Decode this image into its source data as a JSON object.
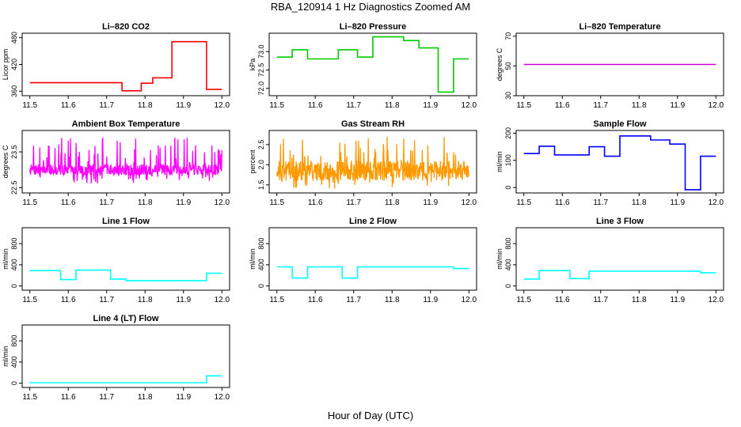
{
  "title": "RBA_120914  1 Hz Diagnostics Zoomed AM",
  "xlabel": "Hour of Day (UTC)",
  "chart_data": [
    {
      "type": "line",
      "title": "Li–820 CO2",
      "ylabel": "Licor ppm",
      "color": "#ff0000",
      "xlim": [
        11.48,
        12.02
      ],
      "ylim": [
        350,
        490
      ],
      "yticks": [
        360,
        420,
        480
      ],
      "xticks": [
        11.5,
        11.6,
        11.7,
        11.8,
        11.9,
        12.0
      ],
      "series": [
        {
          "x": [
            11.5,
            11.74,
            11.74,
            11.79,
            11.79,
            11.82,
            11.82,
            11.87,
            11.87,
            11.96,
            11.96,
            12.0
          ],
          "y": [
            379,
            379,
            361,
            361,
            378,
            378,
            390,
            390,
            471,
            471,
            364,
            364
          ]
        }
      ]
    },
    {
      "type": "line",
      "title": "Li–820 Pressure",
      "ylabel": "kPa",
      "color": "#00cc00",
      "xlim": [
        11.48,
        12.02
      ],
      "ylim": [
        71.8,
        73.5
      ],
      "yticks": [
        72.0,
        72.5,
        73.0
      ],
      "xticks": [
        11.5,
        11.6,
        11.7,
        11.8,
        11.9,
        12.0
      ],
      "series": [
        {
          "x": [
            11.5,
            11.54,
            11.54,
            11.58,
            11.58,
            11.66,
            11.66,
            11.71,
            11.71,
            11.75,
            11.75,
            11.83,
            11.83,
            11.87,
            11.87,
            11.92,
            11.92,
            11.96,
            11.96,
            12.0
          ],
          "y": [
            72.85,
            72.85,
            73.05,
            73.05,
            72.8,
            72.8,
            73.05,
            73.05,
            72.85,
            72.85,
            73.4,
            73.4,
            73.3,
            73.3,
            73.1,
            73.1,
            71.9,
            71.9,
            72.8,
            72.8
          ]
        }
      ]
    },
    {
      "type": "line",
      "title": "Li–820 Temperature",
      "ylabel": "degrees C",
      "color": "#cc00cc",
      "xlim": [
        11.48,
        12.02
      ],
      "ylim": [
        30,
        72
      ],
      "yticks": [
        30,
        50,
        70
      ],
      "xticks": [
        11.5,
        11.6,
        11.7,
        11.8,
        11.9,
        12.0
      ],
      "series": [
        {
          "x": [
            11.5,
            12.0
          ],
          "y": [
            51,
            51
          ]
        }
      ]
    },
    {
      "type": "line",
      "title": "Ambient Box Temperature",
      "ylabel": "degrees C",
      "color": "#ff00ff",
      "xlim": [
        11.48,
        12.02
      ],
      "ylim": [
        22.35,
        24.1
      ],
      "yticks": [
        22.5,
        23.5
      ],
      "xticks": [
        11.5,
        11.6,
        11.7,
        11.8,
        11.9,
        12.0
      ],
      "noise": {
        "base": 23.0,
        "spread": 0.15,
        "spike": 0.9,
        "dip": 0.4,
        "seed": 7
      },
      "series": [
        {
          "x": [
            11.5,
            12.0
          ],
          "y": [
            23.0,
            23.0
          ]
        }
      ]
    },
    {
      "type": "line",
      "title": "Gas Stream RH",
      "ylabel": "percent",
      "color": "#ff9900",
      "xlim": [
        11.48,
        12.02
      ],
      "ylim": [
        1.3,
        2.85
      ],
      "yticks": [
        1.5,
        2.0,
        2.5
      ],
      "xticks": [
        11.5,
        11.6,
        11.7,
        11.8,
        11.9,
        12.0
      ],
      "noise": {
        "base": 1.85,
        "spread": 0.25,
        "spike": 0.85,
        "dip": 0.45,
        "seed": 13
      },
      "series": [
        {
          "x": [
            11.5,
            12.0
          ],
          "y": [
            1.85,
            1.85
          ]
        }
      ]
    },
    {
      "type": "line",
      "title": "Sample Flow",
      "ylabel": "ml/min",
      "color": "#0000ff",
      "xlim": [
        11.48,
        12.02
      ],
      "ylim": [
        -20,
        210
      ],
      "yticks": [
        0,
        100,
        200
      ],
      "xticks": [
        11.5,
        11.6,
        11.7,
        11.8,
        11.9,
        12.0
      ],
      "series": [
        {
          "x": [
            11.5,
            11.54,
            11.54,
            11.58,
            11.58,
            11.67,
            11.67,
            11.71,
            11.71,
            11.75,
            11.75,
            11.83,
            11.83,
            11.88,
            11.88,
            11.92,
            11.92,
            11.96,
            11.96,
            12.0
          ],
          "y": [
            125,
            125,
            152,
            152,
            120,
            120,
            150,
            150,
            115,
            115,
            190,
            190,
            175,
            175,
            160,
            160,
            -8,
            -8,
            115,
            115
          ]
        }
      ]
    },
    {
      "type": "line",
      "title": "Line 1 Flow",
      "ylabel": "ml/min",
      "color": "#00ffff",
      "xlim": [
        11.48,
        12.02
      ],
      "ylim": [
        -80,
        1100
      ],
      "yticks": [
        0,
        400,
        800
      ],
      "xticks": [
        11.5,
        11.6,
        11.7,
        11.8,
        11.9,
        12.0
      ],
      "series": [
        {
          "x": [
            11.5,
            11.58,
            11.58,
            11.62,
            11.62,
            11.71,
            11.71,
            11.75,
            11.75,
            11.96,
            11.96,
            12.0
          ],
          "y": [
            290,
            290,
            120,
            120,
            300,
            300,
            130,
            130,
            100,
            100,
            240,
            240
          ]
        }
      ]
    },
    {
      "type": "line",
      "title": "Line 2 Flow",
      "ylabel": "ml/min",
      "color": "#00ffff",
      "xlim": [
        11.48,
        12.02
      ],
      "ylim": [
        -80,
        1100
      ],
      "yticks": [
        0,
        400,
        800
      ],
      "xticks": [
        11.5,
        11.6,
        11.7,
        11.8,
        11.9,
        12.0
      ],
      "series": [
        {
          "x": [
            11.5,
            11.54,
            11.54,
            11.58,
            11.58,
            11.67,
            11.67,
            11.71,
            11.71,
            11.96,
            11.96,
            12.0
          ],
          "y": [
            360,
            360,
            150,
            150,
            360,
            360,
            150,
            150,
            360,
            360,
            330,
            330
          ]
        }
      ]
    },
    {
      "type": "line",
      "title": "Line 3 Flow",
      "ylabel": "ml/min",
      "color": "#00ffff",
      "xlim": [
        11.48,
        12.02
      ],
      "ylim": [
        -80,
        1100
      ],
      "yticks": [
        0,
        400,
        800
      ],
      "xticks": [
        11.5,
        11.6,
        11.7,
        11.8,
        11.9,
        12.0
      ],
      "series": [
        {
          "x": [
            11.5,
            11.54,
            11.54,
            11.62,
            11.62,
            11.67,
            11.67,
            11.96,
            11.96,
            12.0
          ],
          "y": [
            130,
            130,
            290,
            290,
            140,
            140,
            280,
            280,
            250,
            250
          ]
        }
      ]
    },
    {
      "type": "line",
      "title": "Line 4 (LT) Flow",
      "ylabel": "ml/min",
      "color": "#00ffff",
      "xlim": [
        11.48,
        12.02
      ],
      "ylim": [
        -80,
        1100
      ],
      "yticks": [
        0,
        400,
        800
      ],
      "xticks": [
        11.5,
        11.6,
        11.7,
        11.8,
        11.9,
        12.0
      ],
      "series": [
        {
          "x": [
            11.5,
            11.96,
            11.96,
            12.0
          ],
          "y": [
            10,
            10,
            140,
            140
          ]
        }
      ]
    }
  ]
}
